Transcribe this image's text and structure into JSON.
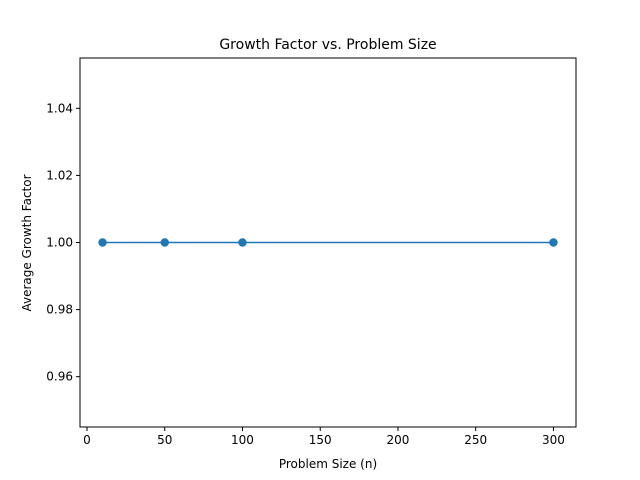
{
  "chart_data": {
    "type": "line",
    "title": "Growth Factor vs. Problem Size",
    "xlabel": "Problem Size (n)",
    "ylabel": "Average Growth Factor",
    "xlim": [
      -4.5,
      314.5
    ],
    "ylim": [
      0.945,
      1.055
    ],
    "x_ticks": [
      0,
      50,
      100,
      150,
      200,
      250,
      300
    ],
    "x_tick_labels": [
      "0",
      "50",
      "100",
      "150",
      "200",
      "250",
      "300"
    ],
    "y_ticks": [
      0.96,
      0.98,
      1.0,
      1.02,
      1.04
    ],
    "y_tick_labels": [
      "0.96",
      "0.98",
      "1.00",
      "1.02",
      "1.04"
    ],
    "grid": false,
    "series": [
      {
        "name": "Average Growth Factor",
        "color": "#1f77b4",
        "marker": "circle",
        "x": [
          10,
          50,
          100,
          300
        ],
        "y": [
          1.0,
          1.0,
          1.0,
          1.0
        ]
      }
    ]
  }
}
